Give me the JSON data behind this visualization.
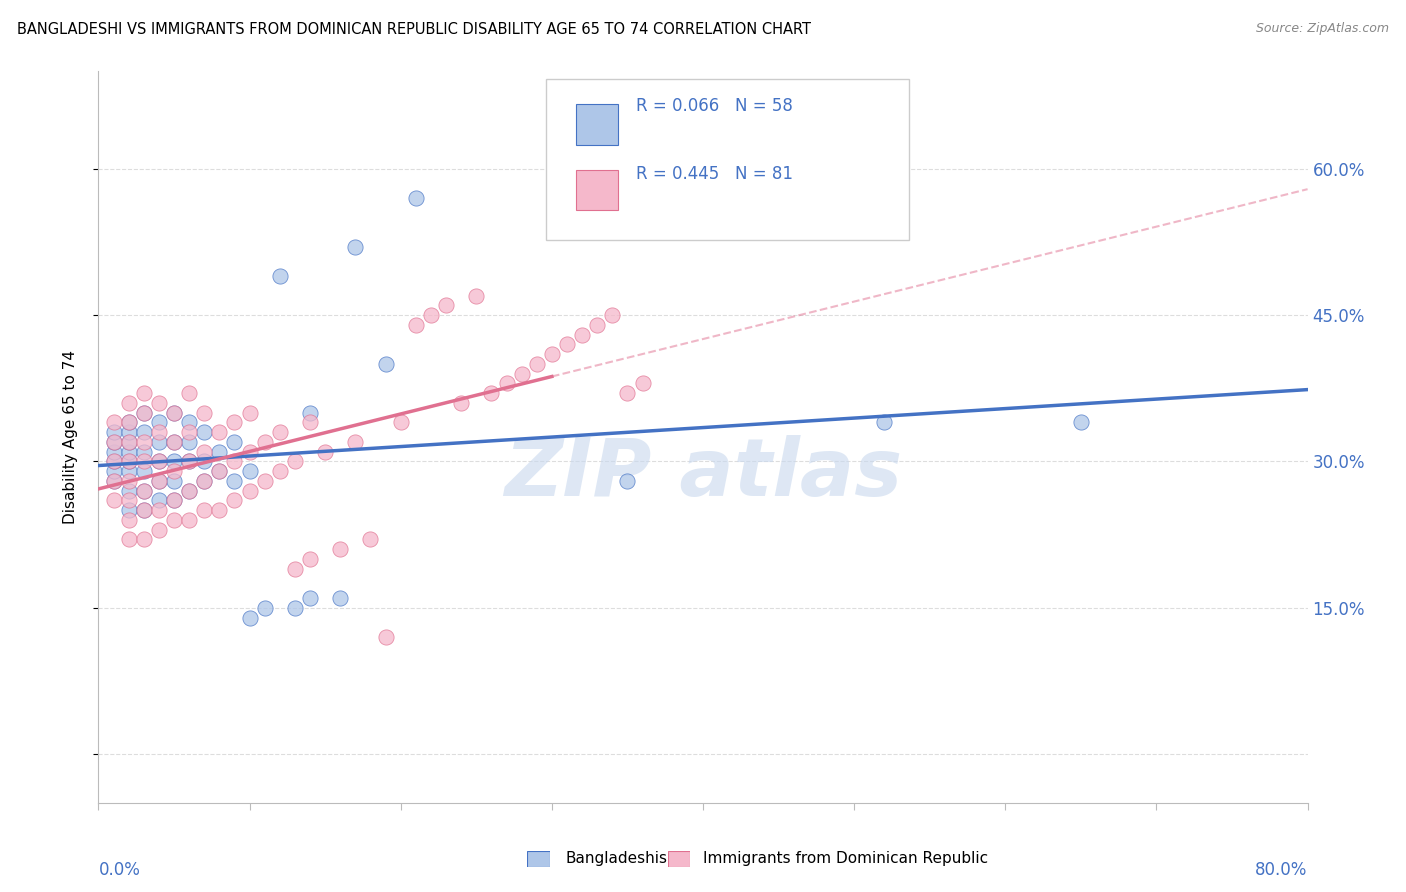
{
  "title": "BANGLADESHI VS IMMIGRANTS FROM DOMINICAN REPUBLIC DISABILITY AGE 65 TO 74 CORRELATION CHART",
  "source": "Source: ZipAtlas.com",
  "ylabel": "Disability Age 65 to 74",
  "xlim": [
    0.0,
    0.8
  ],
  "ylim": [
    -0.05,
    0.7
  ],
  "yticks": [
    0.0,
    0.15,
    0.3,
    0.45,
    0.6
  ],
  "ytick_labels": [
    "",
    "15.0%",
    "30.0%",
    "45.0%",
    "60.0%"
  ],
  "color_blue": "#aec6e8",
  "color_pink": "#f5b8cb",
  "color_blue_text": "#4472c4",
  "color_pink_text": "#e07090",
  "line_blue": "#4472c4",
  "line_pink": "#e07090",
  "watermark_color": "#c8d8ee",
  "bangladeshi_x": [
    0.01,
    0.01,
    0.01,
    0.01,
    0.01,
    0.01,
    0.02,
    0.02,
    0.02,
    0.02,
    0.02,
    0.02,
    0.02,
    0.02,
    0.03,
    0.03,
    0.03,
    0.03,
    0.03,
    0.03,
    0.04,
    0.04,
    0.04,
    0.04,
    0.04,
    0.05,
    0.05,
    0.05,
    0.05,
    0.05,
    0.06,
    0.06,
    0.06,
    0.06,
    0.07,
    0.07,
    0.07,
    0.08,
    0.08,
    0.09,
    0.09,
    0.1,
    0.1,
    0.11,
    0.12,
    0.13,
    0.14,
    0.14,
    0.16,
    0.17,
    0.19,
    0.21,
    0.35,
    0.52,
    0.65
  ],
  "bangladeshi_y": [
    0.28,
    0.29,
    0.3,
    0.31,
    0.32,
    0.33,
    0.25,
    0.27,
    0.29,
    0.3,
    0.31,
    0.32,
    0.33,
    0.34,
    0.25,
    0.27,
    0.29,
    0.31,
    0.33,
    0.35,
    0.26,
    0.28,
    0.3,
    0.32,
    0.34,
    0.26,
    0.28,
    0.3,
    0.32,
    0.35,
    0.27,
    0.3,
    0.32,
    0.34,
    0.28,
    0.3,
    0.33,
    0.29,
    0.31,
    0.28,
    0.32,
    0.14,
    0.29,
    0.15,
    0.49,
    0.15,
    0.16,
    0.35,
    0.16,
    0.52,
    0.4,
    0.57,
    0.28,
    0.34,
    0.34
  ],
  "dominican_x": [
    0.01,
    0.01,
    0.01,
    0.01,
    0.01,
    0.02,
    0.02,
    0.02,
    0.02,
    0.02,
    0.02,
    0.02,
    0.02,
    0.03,
    0.03,
    0.03,
    0.03,
    0.03,
    0.03,
    0.03,
    0.04,
    0.04,
    0.04,
    0.04,
    0.04,
    0.04,
    0.05,
    0.05,
    0.05,
    0.05,
    0.05,
    0.06,
    0.06,
    0.06,
    0.06,
    0.06,
    0.07,
    0.07,
    0.07,
    0.07,
    0.08,
    0.08,
    0.08,
    0.09,
    0.09,
    0.09,
    0.1,
    0.1,
    0.1,
    0.11,
    0.11,
    0.12,
    0.12,
    0.13,
    0.13,
    0.14,
    0.14,
    0.15,
    0.16,
    0.17,
    0.18,
    0.19,
    0.2,
    0.21,
    0.22,
    0.23,
    0.24,
    0.25,
    0.26,
    0.27,
    0.28,
    0.29,
    0.3,
    0.31,
    0.32,
    0.33,
    0.34,
    0.35,
    0.36
  ],
  "dominican_y": [
    0.26,
    0.28,
    0.3,
    0.32,
    0.34,
    0.22,
    0.24,
    0.26,
    0.28,
    0.3,
    0.32,
    0.34,
    0.36,
    0.22,
    0.25,
    0.27,
    0.3,
    0.32,
    0.35,
    0.37,
    0.23,
    0.25,
    0.28,
    0.3,
    0.33,
    0.36,
    0.24,
    0.26,
    0.29,
    0.32,
    0.35,
    0.24,
    0.27,
    0.3,
    0.33,
    0.37,
    0.25,
    0.28,
    0.31,
    0.35,
    0.25,
    0.29,
    0.33,
    0.26,
    0.3,
    0.34,
    0.27,
    0.31,
    0.35,
    0.28,
    0.32,
    0.29,
    0.33,
    0.19,
    0.3,
    0.2,
    0.34,
    0.31,
    0.21,
    0.32,
    0.22,
    0.12,
    0.34,
    0.44,
    0.45,
    0.46,
    0.36,
    0.47,
    0.37,
    0.38,
    0.39,
    0.4,
    0.41,
    0.42,
    0.43,
    0.44,
    0.45,
    0.37,
    0.38
  ]
}
